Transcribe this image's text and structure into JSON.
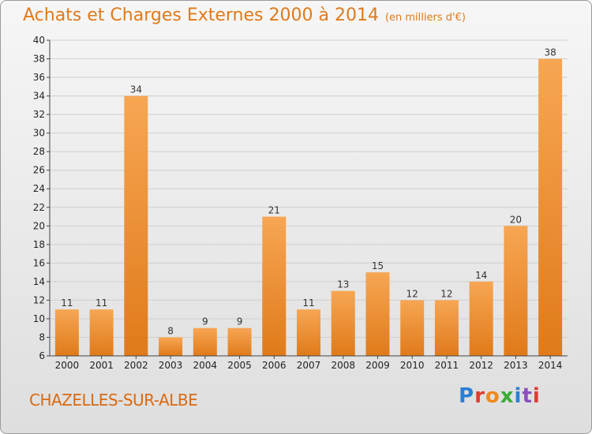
{
  "header": {
    "title": "Achats et Charges Externes 2000 à 2014",
    "unit": "(en milliers d'€)"
  },
  "footer": {
    "town": "CHAZELLES-SUR-ALBE",
    "logo": "Proxiti",
    "logo_colors": [
      "#2a7fd4",
      "#e23b2e",
      "#f08a1c",
      "#3aaa35",
      "#2a7fd4",
      "#8a4fbf",
      "#e23b2e"
    ]
  },
  "colors": {
    "bar_light": "#f7a653",
    "bar_dark": "#e07a1a",
    "grid": "#cfcfcf",
    "axis": "#444444"
  },
  "chart_data": {
    "type": "bar",
    "categories": [
      "2000",
      "2001",
      "2002",
      "2003",
      "2004",
      "2005",
      "2006",
      "2007",
      "2008",
      "2009",
      "2010",
      "2011",
      "2012",
      "2013",
      "2014"
    ],
    "values": [
      11,
      11,
      34,
      8,
      9,
      9,
      21,
      11,
      13,
      15,
      12,
      12,
      14,
      20,
      38
    ],
    "title": "Achats et Charges Externes 2000 à 2014",
    "xlabel": "",
    "ylabel": "",
    "ylim": [
      6,
      40
    ],
    "yticks": [
      6,
      8,
      10,
      12,
      14,
      16,
      18,
      20,
      22,
      24,
      26,
      28,
      30,
      32,
      34,
      36,
      38,
      40
    ],
    "grid": true,
    "data_labels": true
  }
}
